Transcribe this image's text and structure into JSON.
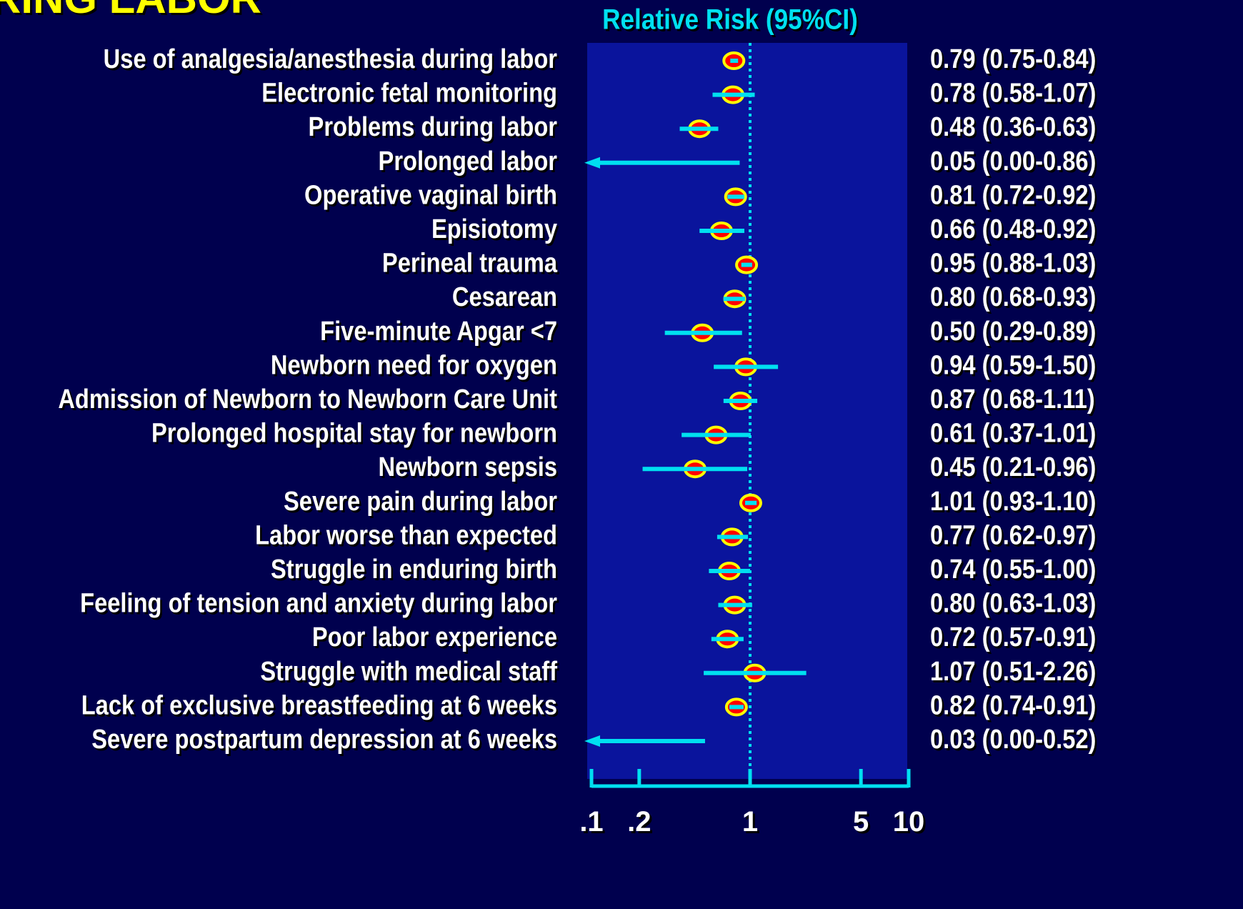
{
  "chart_data": {
    "type": "forest",
    "title": "RING LABOR",
    "xlabel": "Relative Risk (95%CI)",
    "categories": [
      "Use of analgesia/anesthesia during labor",
      "Electronic fetal monitoring",
      "Problems during labor",
      "Prolonged labor",
      "Operative vaginal birth",
      "Episiotomy",
      "Perineal trauma",
      "Cesarean",
      "Five-minute Apgar <7",
      "Newborn need for oxygen",
      "Admission of Newborn to Newborn Care Unit",
      "Prolonged hospital stay for newborn",
      "Newborn sepsis",
      "Severe pain during labor",
      "Labor worse than expected",
      "Struggle in enduring birth",
      "Feeling of tension and anxiety during labor",
      "Poor labor experience",
      "Struggle with medical staff",
      "Lack of exclusive breastfeeding at 6 weeks",
      "Severe postpartum depression at 6 weeks"
    ],
    "values": [
      0.79,
      0.78,
      0.48,
      0.05,
      0.81,
      0.66,
      0.95,
      0.8,
      0.5,
      0.94,
      0.87,
      0.61,
      0.45,
      1.01,
      0.77,
      0.74,
      0.8,
      0.72,
      1.07,
      0.82,
      0.03
    ],
    "lower": [
      0.75,
      0.58,
      0.36,
      0.0,
      0.72,
      0.48,
      0.88,
      0.68,
      0.29,
      0.59,
      0.68,
      0.37,
      0.21,
      0.93,
      0.62,
      0.55,
      0.63,
      0.57,
      0.51,
      0.74,
      0.0
    ],
    "upper": [
      0.84,
      1.07,
      0.63,
      0.86,
      0.92,
      0.92,
      1.03,
      0.93,
      0.89,
      1.5,
      1.11,
      1.01,
      0.96,
      1.1,
      0.97,
      1.0,
      1.03,
      0.91,
      2.26,
      0.91,
      0.52
    ],
    "value_labels": [
      "0.79 (0.75-0.84)",
      "0.78 (0.58-1.07)",
      "0.48 (0.36-0.63)",
      "0.05 (0.00-0.86)",
      "0.81 (0.72-0.92)",
      "0.66 (0.48-0.92)",
      "0.95 (0.88-1.03)",
      "0.80 (0.68-0.93)",
      "0.50 (0.29-0.89)",
      "0.94 (0.59-1.50)",
      "0.87 (0.68-1.11)",
      "0.61 (0.37-1.01)",
      "0.45 (0.21-0.96)",
      "1.01 (0.93-1.10)",
      "0.77 (0.62-0.97)",
      "0.74 (0.55-1.00)",
      "0.80 (0.63-1.03)",
      "0.72 (0.57-0.91)",
      "1.07 (0.51-2.26)",
      "0.82 (0.74-0.91)",
      "0.03 (0.00-0.52)"
    ],
    "xlim": [
      0.1,
      10
    ],
    "xticks": [
      {
        "value": 0.1,
        "label": ".1"
      },
      {
        "value": 0.2,
        "label": ".2"
      },
      1,
      5,
      10
    ],
    "log_x": true,
    "reference": 1,
    "ci_color": "#00e0f0",
    "point_color": "#ff0000",
    "point_edge": "#ffff00"
  }
}
